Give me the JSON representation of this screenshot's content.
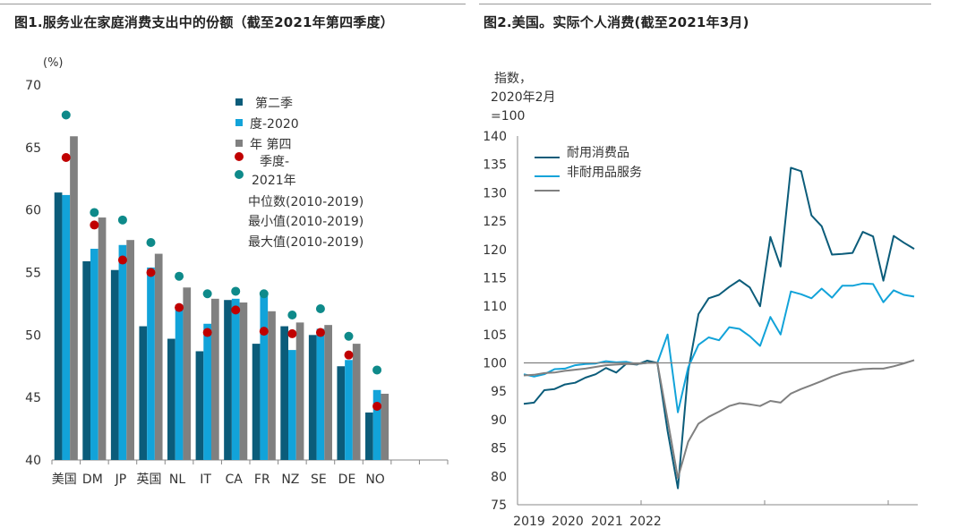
{
  "titles": {
    "left": "图1.服务业在家庭消费支出中的份额（截至2021年第四季度）",
    "right": "图2.美国。实际个人消费(截至2021年3月)"
  },
  "colors": {
    "dark_teal": "#0b5c7a",
    "light_blue": "#12a3d9",
    "gray": "#808080",
    "red": "#c00000",
    "teal": "#0e8a8a"
  },
  "chart_data": [
    {
      "type": "bar",
      "ylabel": "(%)",
      "ylim": [
        40,
        70
      ],
      "yticks": [
        40,
        45,
        50,
        55,
        60,
        65,
        70
      ],
      "categories": [
        "美国",
        "DM",
        "JP",
        "英国",
        "NL",
        "IT",
        "CA",
        "FR",
        "NZ",
        "SE",
        "DE",
        "NO",
        "",
        ""
      ],
      "legend": [
        "第二季",
        "度-2020",
        "年 第四",
        "季度-",
        "2021年",
        "中位数(2010-2019)",
        "最小值(2010-2019)",
        "最大值(2010-2019)"
      ],
      "series": [
        {
          "values": [
            61.4,
            55.9,
            55.2,
            50.7,
            49.7,
            48.7,
            52.8,
            49.3,
            50.7,
            50.0,
            47.5,
            43.8,
            null,
            null
          ]
        },
        {
          "values": [
            61.2,
            56.9,
            57.2,
            55.4,
            52.4,
            50.9,
            52.9,
            53.2,
            48.8,
            50.5,
            48.0,
            45.6,
            null,
            null
          ]
        },
        {
          "values": [
            65.9,
            59.4,
            57.6,
            56.5,
            53.8,
            52.9,
            52.6,
            51.9,
            51.0,
            50.8,
            49.3,
            45.3,
            null,
            null
          ]
        }
      ],
      "markers": [
        {
          "shape": "dot",
          "color": "red",
          "values": [
            64.2,
            58.8,
            56.0,
            55.0,
            52.2,
            50.2,
            52.0,
            50.3,
            50.1,
            50.2,
            48.4,
            44.3
          ]
        },
        {
          "shape": "dot",
          "color": "teal",
          "values": [
            67.6,
            59.8,
            59.2,
            57.4,
            54.7,
            53.3,
            53.5,
            53.3,
            51.6,
            52.1,
            49.9,
            47.2
          ]
        }
      ]
    },
    {
      "type": "line",
      "ylabel": "指数，\n2020年2月\n=100",
      "ylim": [
        75,
        140
      ],
      "yticks": [
        75,
        80,
        85,
        90,
        95,
        100,
        105,
        110,
        115,
        120,
        125,
        130,
        135,
        140
      ],
      "xticks": [
        "2019",
        "2020",
        "2021",
        "2022"
      ],
      "legend": [
        "耐用消费品",
        "非耐用品服务",
        ""
      ],
      "series": [
        {
          "name": "耐用消费品",
          "color": "dark_teal",
          "values": [
            92.8,
            93.0,
            95.2,
            95.4,
            96.2,
            96.5,
            97.4,
            98.0,
            99.1,
            98.3,
            99.9,
            99.7,
            100.4,
            100.0,
            88.0,
            77.9,
            98.5,
            108.6,
            111.4,
            112.0,
            113.4,
            114.6,
            113.3,
            110.0,
            122.2,
            117.0,
            134.4,
            133.8,
            126.0,
            124.1,
            119.1,
            119.2,
            119.4,
            123.1,
            122.3,
            114.5,
            122.4,
            121.2,
            120.1
          ]
        },
        {
          "name": "非耐用品服务",
          "color": "light_blue",
          "values": [
            98.0,
            97.6,
            98.0,
            98.9,
            99.0,
            99.6,
            99.8,
            99.9,
            100.3,
            100.1,
            100.2,
            99.8,
            100.0,
            100.0,
            105.0,
            91.3,
            99.2,
            103.2,
            104.5,
            104.0,
            106.3,
            106.0,
            104.7,
            103.0,
            108.1,
            105.0,
            112.6,
            112.1,
            111.4,
            113.1,
            111.5,
            113.6,
            113.6,
            114.0,
            113.9,
            110.7,
            112.8,
            112.0,
            111.7
          ]
        },
        {
          "color": "gray",
          "values": [
            97.8,
            97.9,
            98.2,
            98.3,
            98.6,
            98.8,
            99.0,
            99.3,
            99.6,
            99.7,
            99.8,
            99.8,
            100.0,
            100.0,
            90.0,
            79.7,
            86.1,
            89.3,
            90.5,
            91.4,
            92.4,
            92.9,
            92.7,
            92.4,
            93.3,
            93.0,
            94.6,
            95.4,
            96.1,
            96.8,
            97.6,
            98.2,
            98.6,
            98.9,
            99.0,
            99.0,
            99.4,
            99.9,
            100.5
          ]
        },
        {
          "color": "gray",
          "values": [
            100.0,
            100.0,
            100.0,
            100.0,
            100.0,
            100.0,
            100.0,
            100.0,
            100.0,
            100.0,
            100.0,
            100.0,
            100.0,
            100.0,
            100.0,
            100.0,
            100.0,
            100.0,
            100.0,
            100.0,
            100.0,
            100.0,
            100.0,
            100.0,
            100.0,
            100.0,
            100.0,
            100.0,
            100.0,
            100.0,
            100.0,
            100.0,
            100.0,
            100.0,
            100.0,
            100.0,
            100.0,
            100.0,
            100.5
          ]
        }
      ]
    }
  ]
}
